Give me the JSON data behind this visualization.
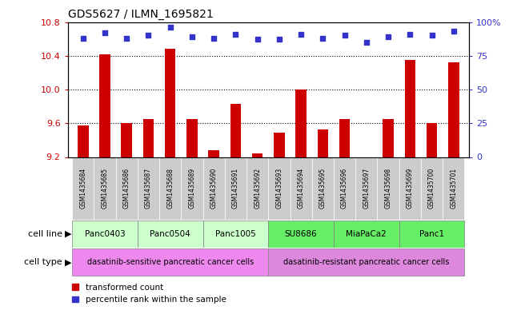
{
  "title": "GDS5627 / ILMN_1695821",
  "samples": [
    "GSM1435684",
    "GSM1435685",
    "GSM1435686",
    "GSM1435687",
    "GSM1435688",
    "GSM1435689",
    "GSM1435690",
    "GSM1435691",
    "GSM1435692",
    "GSM1435693",
    "GSM1435694",
    "GSM1435695",
    "GSM1435696",
    "GSM1435697",
    "GSM1435698",
    "GSM1435699",
    "GSM1435700",
    "GSM1435701"
  ],
  "transformed_count": [
    9.57,
    10.42,
    9.6,
    9.65,
    10.48,
    9.65,
    9.28,
    9.83,
    9.24,
    9.49,
    10.0,
    9.53,
    9.65,
    9.2,
    9.65,
    10.35,
    9.6,
    10.32
  ],
  "percentile_rank": [
    88,
    92,
    88,
    90,
    96,
    89,
    88,
    91,
    87,
    87,
    91,
    88,
    90,
    85,
    89,
    91,
    90,
    93
  ],
  "ylim_left": [
    9.2,
    10.8
  ],
  "ylim_right": [
    0,
    100
  ],
  "yticks_left": [
    9.2,
    9.6,
    10.0,
    10.4,
    10.8
  ],
  "yticks_right": [
    0,
    25,
    50,
    75,
    100
  ],
  "ytick_labels_right": [
    "0",
    "25",
    "50",
    "75",
    "100%"
  ],
  "cell_lines": [
    {
      "label": "Panc0403",
      "start": 0,
      "end": 2,
      "color": "#ccffcc"
    },
    {
      "label": "Panc0504",
      "start": 3,
      "end": 5,
      "color": "#ccffcc"
    },
    {
      "label": "Panc1005",
      "start": 6,
      "end": 8,
      "color": "#ccffcc"
    },
    {
      "label": "SU8686",
      "start": 9,
      "end": 11,
      "color": "#66ee66"
    },
    {
      "label": "MiaPaCa2",
      "start": 12,
      "end": 14,
      "color": "#66ee66"
    },
    {
      "label": "Panc1",
      "start": 15,
      "end": 17,
      "color": "#66ee66"
    }
  ],
  "cell_types": [
    {
      "label": "dasatinib-sensitive pancreatic cancer cells",
      "start": 0,
      "end": 8,
      "color": "#ee88ee"
    },
    {
      "label": "dasatinib-resistant pancreatic cancer cells",
      "start": 9,
      "end": 17,
      "color": "#dd88dd"
    }
  ],
  "bar_color": "#cc0000",
  "dot_color": "#3333cc",
  "grid_color": "#000000",
  "left_tick_color": "#cc0000",
  "right_tick_color": "#3333cc",
  "sample_box_color": "#cccccc",
  "legend_items": [
    {
      "label": "transformed count",
      "color": "#cc0000"
    },
    {
      "label": "percentile rank within the sample",
      "color": "#3333cc"
    }
  ]
}
